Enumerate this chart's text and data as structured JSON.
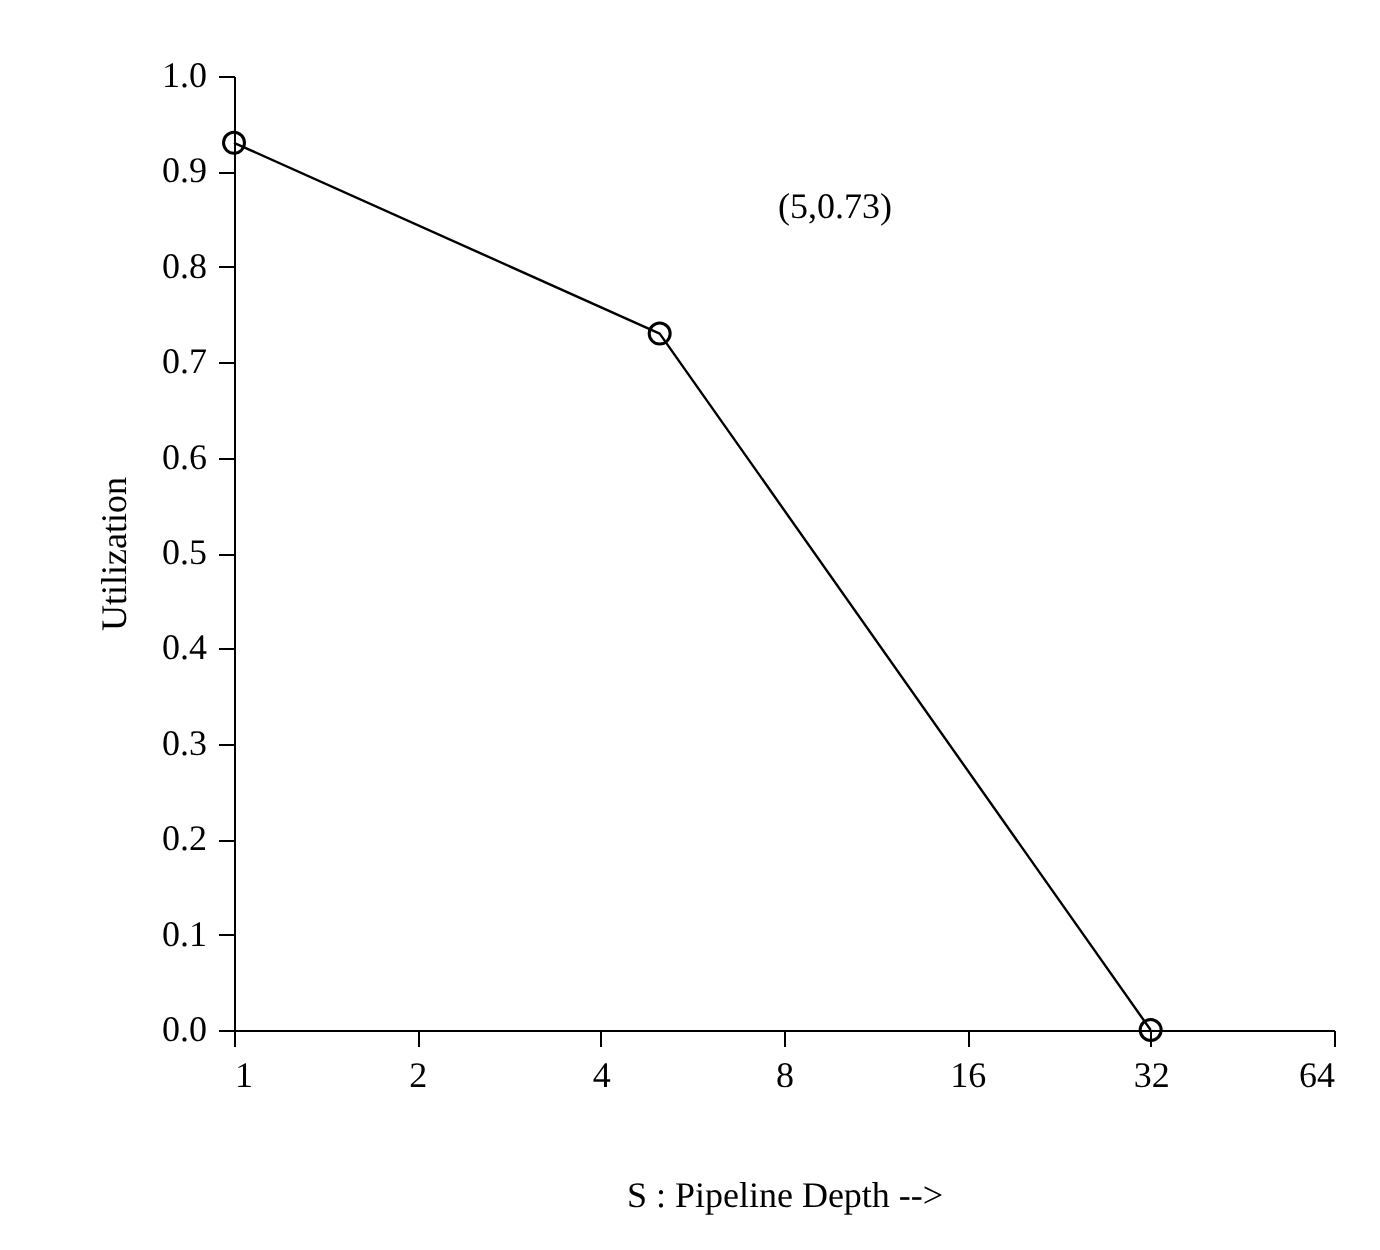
{
  "chart_data": {
    "type": "line",
    "xlabel": "S : Pipeline Depth -->",
    "ylabel": "Utilization",
    "x": [
      1,
      5,
      32
    ],
    "series": [
      {
        "color": "#000000",
        "values": [
          0.93,
          0.73,
          0
        ]
      }
    ],
    "log": "x",
    "xlim": [
      1,
      64
    ],
    "xticks": [
      1,
      2,
      4,
      8,
      16,
      32,
      64
    ],
    "ylim": [
      0,
      1
    ],
    "yticks": [
      {
        "value": 0,
        "label": "0.0"
      },
      0.1,
      0.2,
      0.3,
      0.4,
      0.5,
      0.6,
      0.7,
      0.8,
      0.9,
      {
        "value": 1,
        "label": "1.0"
      }
    ],
    "grid": false,
    "legend": false,
    "marker": "circle",
    "line_style": "solid",
    "annotations": [
      "(5,0.73)"
    ]
  }
}
